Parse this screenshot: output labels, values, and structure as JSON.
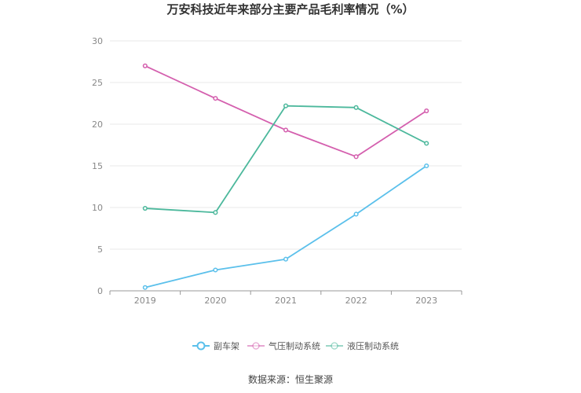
{
  "chart_data": {
    "type": "line",
    "title": "万安科技近年来部分主要产品毛利率情况（%）",
    "x": [
      "2019",
      "2020",
      "2021",
      "2022",
      "2023"
    ],
    "ylim": [
      0,
      30
    ],
    "yticks": [
      0,
      5,
      10,
      15,
      20,
      25,
      30
    ],
    "grid": true,
    "legend_position": "bottom",
    "series": [
      {
        "name": "副车架",
        "color": "#5bc0eb",
        "values": [
          0.4,
          2.5,
          3.8,
          9.2,
          15.0
        ]
      },
      {
        "name": "气压制动系统",
        "color": "#d45fae",
        "values": [
          27.0,
          23.1,
          19.3,
          16.1,
          21.6
        ]
      },
      {
        "name": "液压制动系统",
        "color": "#4cb89c",
        "values": [
          9.9,
          9.4,
          22.2,
          22.0,
          17.7
        ]
      }
    ]
  },
  "source": "数据来源：恒生聚源"
}
